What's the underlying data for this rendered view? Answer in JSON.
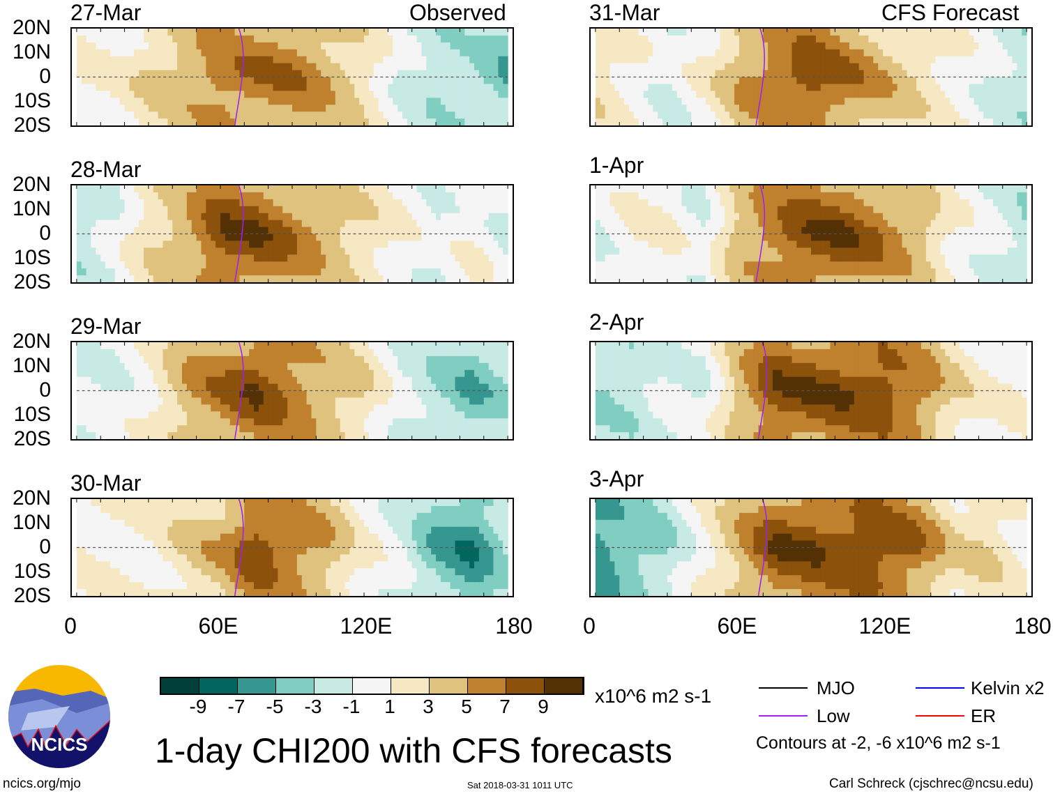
{
  "header": {
    "observed_label": "Observed",
    "forecast_label": "CFS Forecast"
  },
  "lat_labels": [
    "20N",
    "10N",
    "0",
    "10S",
    "20S"
  ],
  "lon_labels": [
    "0",
    "60E",
    "120E",
    "180"
  ],
  "colorbar": {
    "colors": [
      "#01403a",
      "#01665e",
      "#35978f",
      "#80cdc1",
      "#c7eae5",
      "#f5f5f5",
      "#f6e8c3",
      "#dfc27d",
      "#bf812d",
      "#8c510a",
      "#543005"
    ],
    "labels": [
      "-9",
      "-7",
      "-5",
      "-3",
      "-1",
      "1",
      "3",
      "5",
      "7",
      "9"
    ],
    "units": "x10^6 m2 s-1"
  },
  "legend": {
    "mjo": "MJO",
    "kelvin": "Kelvin x2",
    "low": "Low",
    "er": "ER",
    "contours": "Contours at -2, -6 x10^6 m2 s-1",
    "colors": {
      "mjo": "#000000",
      "kelvin": "#0000ff",
      "low": "#a020f0",
      "er": "#ff0000"
    }
  },
  "title": "1-day CHI200 with CFS forecasts",
  "logo": {
    "text": "NCICS"
  },
  "footer": {
    "url": "ncics.org/mjo",
    "timestamp": "Sat 2018-03-31 1011 UTC",
    "author": "Carl Schreck (cjschrec@ncsu.edu)"
  },
  "chart_data": {
    "type": "heatmap",
    "description_lon": [
      0,
      15,
      30,
      45,
      60,
      75,
      90,
      105,
      120,
      135,
      150,
      165,
      180
    ],
    "lat_range": [
      -20,
      20
    ],
    "lon_range": [
      0,
      180
    ],
    "panels": [
      {
        "date": "27-Mar",
        "kind": "observed",
        "low_lon": 70,
        "equator_chi": [
          1,
          1,
          3,
          5,
          7,
          7,
          7,
          5,
          3,
          -1,
          -3,
          -3,
          -5
        ]
      },
      {
        "date": "28-Mar",
        "kind": "observed",
        "low_lon": 70,
        "equator_chi": [
          -3,
          -1,
          3,
          5,
          9,
          9,
          7,
          5,
          3,
          1,
          -1,
          1,
          -1
        ]
      },
      {
        "date": "29-Mar",
        "kind": "observed",
        "low_lon": 70,
        "equator_chi": [
          -1,
          -1,
          1,
          5,
          7,
          9,
          7,
          5,
          3,
          -1,
          -3,
          -5,
          -3
        ]
      },
      {
        "date": "30-Mar",
        "kind": "observed",
        "low_lon": 70,
        "equator_chi": [
          1,
          1,
          1,
          3,
          5,
          9,
          7,
          5,
          1,
          -1,
          -5,
          -7,
          -3
        ]
      },
      {
        "date": "31-Mar",
        "kind": "forecast",
        "low_lon": 71,
        "equator_chi": [
          3,
          1,
          -1,
          1,
          5,
          7,
          9,
          7,
          5,
          3,
          1,
          -1,
          -3
        ]
      },
      {
        "date": "1-Apr",
        "kind": "forecast",
        "low_lon": 71,
        "equator_chi": [
          -1,
          1,
          1,
          -1,
          5,
          7,
          9,
          9,
          7,
          5,
          1,
          -1,
          -3
        ]
      },
      {
        "date": "2-Apr",
        "kind": "forecast",
        "low_lon": 72,
        "equator_chi": [
          -3,
          -3,
          -1,
          -1,
          5,
          9,
          9,
          9,
          9,
          7,
          3,
          1,
          1
        ]
      },
      {
        "date": "3-Apr",
        "kind": "forecast",
        "low_lon": 72,
        "equator_chi": [
          -7,
          -5,
          -3,
          1,
          5,
          9,
          9,
          9,
          9,
          7,
          3,
          3,
          1
        ]
      }
    ]
  }
}
